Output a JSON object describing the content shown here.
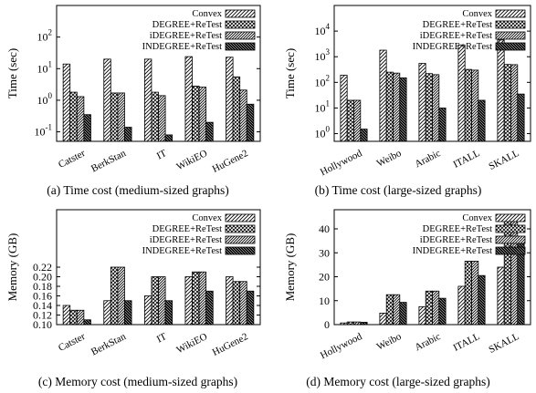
{
  "legend_order": [
    "Convex",
    "DEGREE+ReTest",
    "iDEGREE+ReTest",
    "INDEGREE+ReTest"
  ],
  "chart_data": [
    {
      "type": "bar",
      "caption": "(a) Time cost (medium-sized graphs)",
      "ylabel": "Time (sec)",
      "scale": "log",
      "ylim": [
        0.05,
        1000
      ],
      "yticks": [
        {
          "v": 0.1,
          "base": "10",
          "exp": "-1"
        },
        {
          "v": 1,
          "base": "10",
          "exp": "0"
        },
        {
          "v": 10,
          "base": "10",
          "exp": "1"
        },
        {
          "v": 100,
          "base": "10",
          "exp": "2"
        }
      ],
      "categories": [
        "Catster",
        "BerkStan",
        "IT",
        "WikiEO",
        "HuGene2"
      ],
      "series": [
        {
          "name": "Convex",
          "values": [
            14,
            20,
            20,
            24,
            23
          ]
        },
        {
          "name": "DEGREE+ReTest",
          "values": [
            1.8,
            1.7,
            1.8,
            2.8,
            5.5
          ]
        },
        {
          "name": "iDEGREE+ReTest",
          "values": [
            1.3,
            1.7,
            1.4,
            2.6,
            2.1
          ]
        },
        {
          "name": "INDEGREE+ReTest",
          "values": [
            0.35,
            0.14,
            0.08,
            0.2,
            0.75
          ]
        }
      ],
      "legend": "top-right",
      "grid": false
    },
    {
      "type": "bar",
      "caption": "(b) Time cost (large-sized graphs)",
      "ylabel": "Time (sec)",
      "scale": "log",
      "ylim": [
        0.5,
        100000
      ],
      "yticks": [
        {
          "v": 1,
          "base": "10",
          "exp": "0"
        },
        {
          "v": 10,
          "base": "10",
          "exp": "1"
        },
        {
          "v": 100,
          "base": "10",
          "exp": "2"
        },
        {
          "v": 1000,
          "base": "10",
          "exp": "3"
        },
        {
          "v": 10000,
          "base": "10",
          "exp": "4"
        }
      ],
      "categories": [
        "Hollywood",
        "Weibo",
        "Arabic",
        "ITALL",
        "SKALL"
      ],
      "series": [
        {
          "name": "Convex",
          "values": [
            190,
            1800,
            550,
            2900,
            4500
          ]
        },
        {
          "name": "DEGREE+ReTest",
          "values": [
            20,
            250,
            220,
            320,
            500
          ]
        },
        {
          "name": "iDEGREE+ReTest",
          "values": [
            20,
            230,
            200,
            300,
            490
          ]
        },
        {
          "name": "INDEGREE+ReTest",
          "values": [
            1.5,
            150,
            10,
            20,
            35
          ]
        }
      ],
      "legend": "top-right",
      "grid": false
    },
    {
      "type": "bar",
      "caption": "(c) Memory cost (medium-sized graphs)",
      "ylabel": "Memory (GB)",
      "scale": "linear",
      "ylim": [
        0.1,
        0.34
      ],
      "yticks": [
        {
          "v": 0.1,
          "label": "0.10"
        },
        {
          "v": 0.12,
          "label": "0.12"
        },
        {
          "v": 0.14,
          "label": "0.14"
        },
        {
          "v": 0.16,
          "label": "0.16"
        },
        {
          "v": 0.18,
          "label": "0.18"
        },
        {
          "v": 0.2,
          "label": "0.20"
        },
        {
          "v": 0.22,
          "label": "0.22"
        }
      ],
      "categories": [
        "Catster",
        "BerkStan",
        "IT",
        "WikiEO",
        "HuGene2"
      ],
      "series": [
        {
          "name": "Convex",
          "values": [
            0.14,
            0.15,
            0.16,
            0.2,
            0.2
          ]
        },
        {
          "name": "DEGREE+ReTest",
          "values": [
            0.13,
            0.22,
            0.2,
            0.21,
            0.19
          ]
        },
        {
          "name": "iDEGREE+ReTest",
          "values": [
            0.13,
            0.22,
            0.2,
            0.21,
            0.19
          ]
        },
        {
          "name": "INDEGREE+ReTest",
          "values": [
            0.11,
            0.15,
            0.15,
            0.17,
            0.17
          ]
        }
      ],
      "legend": "top-right",
      "grid": false
    },
    {
      "type": "bar",
      "caption": "(d) Memory cost (large-sized graphs)",
      "ylabel": "Memory (GB)",
      "scale": "linear",
      "ylim": [
        0,
        48
      ],
      "yticks": [
        {
          "v": 0,
          "label": "0"
        },
        {
          "v": 10,
          "label": "10"
        },
        {
          "v": 20,
          "label": "20"
        },
        {
          "v": 30,
          "label": "30"
        },
        {
          "v": 40,
          "label": "40"
        }
      ],
      "categories": [
        "Hollywood",
        "Weibo",
        "Arabic",
        "ITALL",
        "SKALL"
      ],
      "series": [
        {
          "name": "Convex",
          "values": [
            0.7,
            4.8,
            7.5,
            16,
            24
          ]
        },
        {
          "name": "DEGREE+ReTest",
          "values": [
            1.1,
            12.5,
            14,
            26.5,
            43.5
          ]
        },
        {
          "name": "iDEGREE+ReTest",
          "values": [
            1.1,
            12.5,
            14,
            26.5,
            43.5
          ]
        },
        {
          "name": "INDEGREE+ReTest",
          "values": [
            1,
            9.3,
            11,
            20.5,
            35
          ]
        }
      ],
      "legend": "top-right",
      "grid": false
    }
  ]
}
